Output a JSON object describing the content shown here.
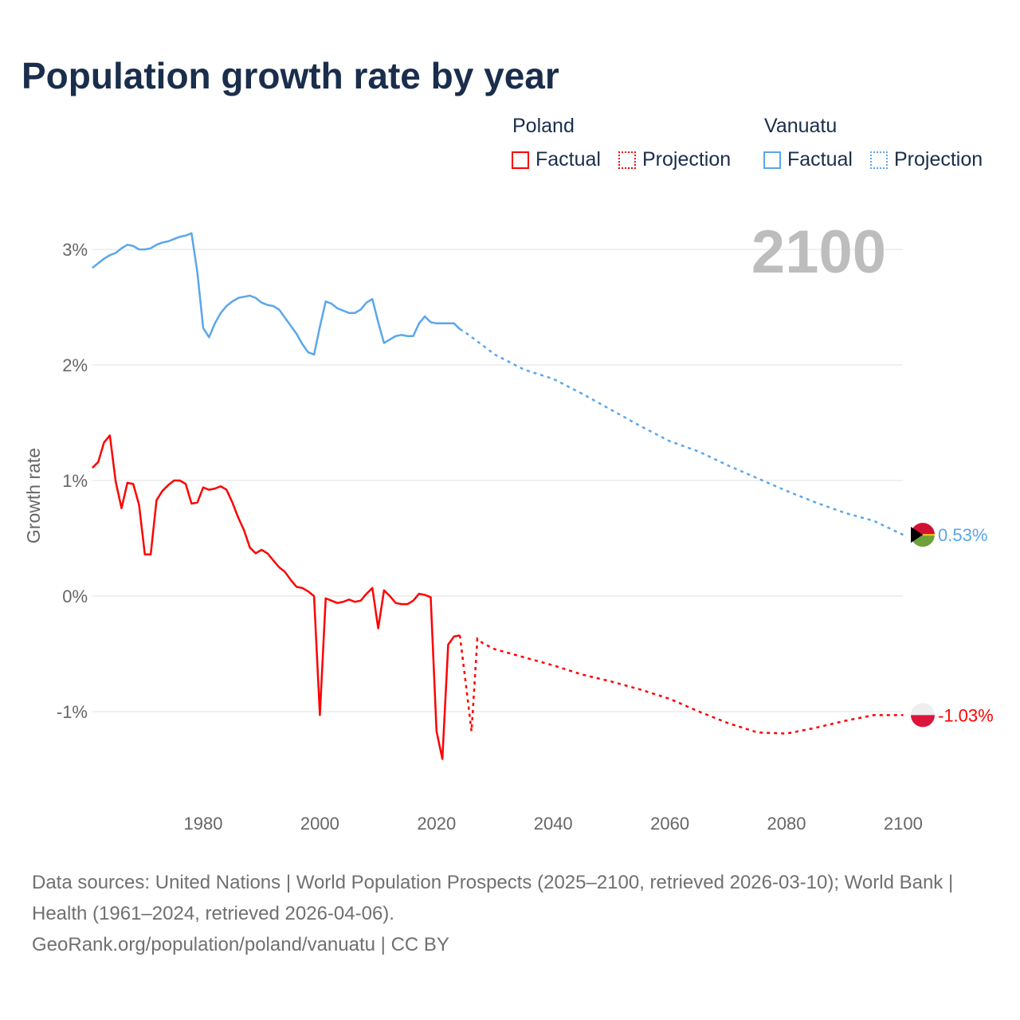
{
  "title": "Population growth rate by year",
  "legend": {
    "groups": [
      {
        "name": "Poland",
        "color": "#ff0000",
        "factual": "Factual",
        "projection": "Projection"
      },
      {
        "name": "Vanuatu",
        "color": "#5aa6ec",
        "factual": "Factual",
        "projection": "Projection"
      }
    ]
  },
  "year_label": "2100",
  "footer": {
    "sources": "Data sources: United Nations | World Population Prospects (2025–2100, retrieved 2026-03-10); World Bank | Health (1961–2024, retrieved 2026-04-06).",
    "link": "GeoRank.org/population/poland/vanuatu | CC BY"
  },
  "chart_data": {
    "type": "line",
    "title": "Population growth rate by year",
    "ylabel": "Growth rate",
    "xlim": [
      1961,
      2100
    ],
    "ylim": [
      -1.75,
      3.4
    ],
    "x_ticks": [
      1980,
      2000,
      2020,
      2040,
      2060,
      2080,
      2100
    ],
    "x_tick_labels": [
      "1980",
      "2000",
      "2020",
      "2040",
      "2060",
      "2080",
      "2100"
    ],
    "y_ticks": [
      3,
      2,
      1,
      0,
      -1
    ],
    "y_tick_labels": [
      "3%",
      "2%",
      "1%",
      "0%",
      "-1%"
    ],
    "grid": true,
    "series": [
      {
        "name": "Poland",
        "color": "#ff0000",
        "end_label": "-1.03%",
        "factual": {
          "start": 1961,
          "values": [
            1.11,
            1.16,
            1.33,
            1.39,
            0.99,
            0.76,
            0.98,
            0.97,
            0.79,
            0.36,
            0.36,
            0.83,
            0.91,
            0.96,
            1.0,
            1.0,
            0.97,
            0.8,
            0.81,
            0.94,
            0.92,
            0.93,
            0.95,
            0.92,
            0.81,
            0.68,
            0.57,
            0.42,
            0.37,
            0.4,
            0.37,
            0.31,
            0.25,
            0.21,
            0.14,
            0.08,
            0.07,
            0.04,
            0.0,
            -1.03,
            -0.02,
            -0.04,
            -0.06,
            -0.05,
            -0.03,
            -0.05,
            -0.04,
            0.02,
            0.07,
            -0.28,
            0.05,
            0.0,
            -0.06,
            -0.07,
            -0.07,
            -0.04,
            0.02,
            0.01,
            -0.01,
            -1.17,
            -1.41,
            -0.42,
            -0.35,
            -0.34
          ]
        },
        "projection": {
          "x": [
            2024,
            2025,
            2026,
            2027,
            2028,
            2030,
            2035,
            2040,
            2045,
            2050,
            2055,
            2060,
            2065,
            2070,
            2075,
            2080,
            2085,
            2090,
            2095,
            2100
          ],
          "values": [
            -0.34,
            -0.75,
            -1.17,
            -0.37,
            -0.41,
            -0.46,
            -0.53,
            -0.6,
            -0.68,
            -0.74,
            -0.81,
            -0.89,
            -1.0,
            -1.1,
            -1.18,
            -1.19,
            -1.14,
            -1.08,
            -1.03,
            -1.03
          ]
        }
      },
      {
        "name": "Vanuatu",
        "color": "#5aa6ec",
        "end_label": "0.53%",
        "factual": {
          "start": 1961,
          "values": [
            2.84,
            2.88,
            2.92,
            2.95,
            2.97,
            3.01,
            3.04,
            3.03,
            3.0,
            3.0,
            3.01,
            3.04,
            3.06,
            3.07,
            3.09,
            3.11,
            3.12,
            3.14,
            2.8,
            2.32,
            2.24,
            2.36,
            2.45,
            2.51,
            2.55,
            2.58,
            2.59,
            2.6,
            2.58,
            2.54,
            2.52,
            2.51,
            2.48,
            2.41,
            2.34,
            2.27,
            2.18,
            2.11,
            2.09,
            2.33,
            2.55,
            2.53,
            2.49,
            2.47,
            2.45,
            2.45,
            2.48,
            2.54,
            2.57,
            2.37,
            2.19,
            2.22,
            2.25,
            2.26,
            2.25,
            2.25,
            2.36,
            2.42,
            2.37,
            2.36,
            2.36,
            2.36,
            2.36,
            2.31
          ]
        },
        "projection": {
          "x": [
            2024,
            2025,
            2030,
            2035,
            2040,
            2045,
            2050,
            2055,
            2060,
            2065,
            2070,
            2075,
            2080,
            2085,
            2090,
            2095,
            2100
          ],
          "values": [
            2.31,
            2.28,
            2.09,
            1.96,
            1.88,
            1.75,
            1.61,
            1.47,
            1.34,
            1.25,
            1.13,
            1.02,
            0.91,
            0.81,
            0.72,
            0.65,
            0.53
          ]
        }
      }
    ]
  }
}
